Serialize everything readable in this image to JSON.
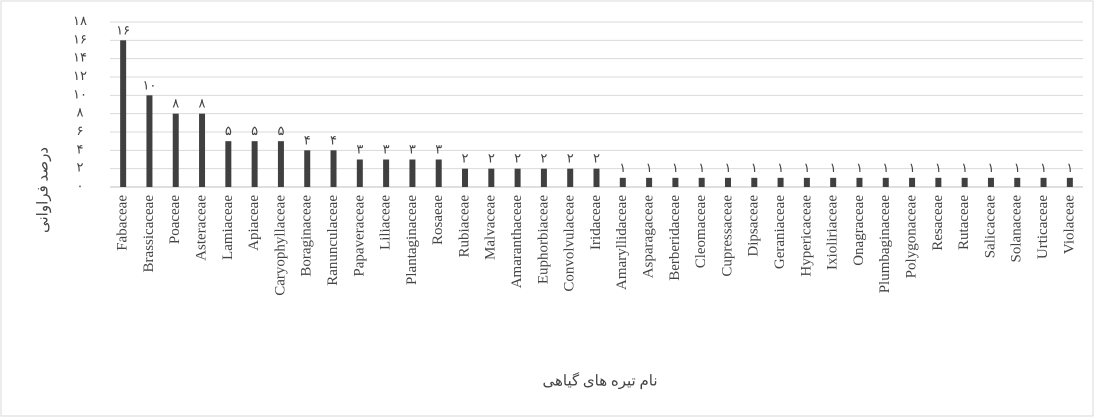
{
  "chart_data": {
    "type": "bar",
    "x_label": "نام تیره های گیاهی",
    "y_label": "درصد فراوانی",
    "categories": [
      "Fabaceae",
      "Brassicaceae",
      "Poaceae",
      "Asteraceae",
      "Lamiaceae",
      "Apiaceae",
      "Caryophyllaceae",
      "Boraginaceae",
      "Ranunculaceae",
      "Papaveraceae",
      "Liliaceae",
      "Plantaginaceae",
      "Rosaeae",
      "Rubiaceae",
      "Malvaceae",
      "Amaranthaceae",
      "Euphorbiaceae",
      "Convolvulaceae",
      "Iridaceae",
      "Amaryllidaceae",
      "Asparagaceae",
      "Berberidaceae",
      "Cleomaceae",
      "Cupressaceae",
      "Dipsaceae",
      "Geraniaceae",
      "Hypericaceae",
      "Ixioliriaceae",
      "Onagraceae",
      "Plumbaginaceae",
      "Polygonaceae",
      "Resaceae",
      "Rutaceae",
      "Salicaceae",
      "Solanaceae",
      "Urticaceae",
      "Violaceae"
    ],
    "values": [
      16,
      10,
      8,
      8,
      5,
      5,
      5,
      4,
      4,
      3,
      3,
      3,
      3,
      2,
      2,
      2,
      2,
      2,
      2,
      1,
      1,
      1,
      1,
      1,
      1,
      1,
      1,
      1,
      1,
      1,
      1,
      1,
      1,
      1,
      1,
      1,
      1
    ],
    "value_labels": [
      "١۶",
      "١٠",
      "٨",
      "٨",
      "۵",
      "۵",
      "۵",
      "۴",
      "۴",
      "٣",
      "٣",
      "٣",
      "٣",
      "٢",
      "٢",
      "٢",
      "٢",
      "٢",
      "٢",
      "١",
      "١",
      "١",
      "١",
      "١",
      "١",
      "١",
      "١",
      "١",
      "١",
      "١",
      "١",
      "١",
      "١",
      "١",
      "١",
      "١",
      "١"
    ],
    "color": "#404040",
    "ylim": [
      0,
      18
    ],
    "yticks": [
      {
        "value": 0,
        "label": "٠"
      },
      {
        "value": 2,
        "label": "٢"
      },
      {
        "value": 4,
        "label": "۴"
      },
      {
        "value": 6,
        "label": "۶"
      },
      {
        "value": 8,
        "label": "٨"
      },
      {
        "value": 10,
        "label": "١٠"
      },
      {
        "value": 12,
        "label": "١٢"
      },
      {
        "value": 14,
        "label": "١۴"
      },
      {
        "value": 16,
        "label": "١۶"
      },
      {
        "value": 18,
        "label": "١٨"
      }
    ],
    "grid": true
  }
}
